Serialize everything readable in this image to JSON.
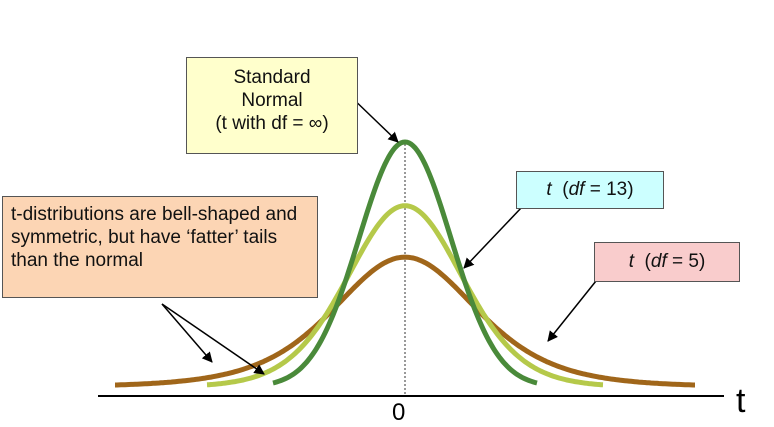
{
  "labels": {
    "standard_normal": [
      "Standard",
      "Normal",
      "(t with df = ∞)"
    ],
    "description": "t-distributions are bell-shaped and symmetric, but have ‘fatter’ tails than the normal",
    "t13": {
      "t": "t",
      "open": "(",
      "df": "df",
      "eq": " = 13)"
    },
    "t5": {
      "t": "t",
      "open": "(",
      "df": "df",
      "eq": " = 5)"
    }
  },
  "axis": {
    "zero_label": "0",
    "variable_label": "t"
  },
  "colors": {
    "normal_curve": "#4a8a3a",
    "t13_curve": "#b5c94a",
    "t5_curve": "#a0661a",
    "std_box": "#ffffcc",
    "desc_box": "#fcd5b4",
    "t13_box": "#ccffff",
    "t5_box": "#f9cccc"
  },
  "chart_data": {
    "type": "line",
    "series": [
      {
        "df": "infinity",
        "peak": 1.0
      },
      {
        "df": 13,
        "peak": 0.74
      },
      {
        "df": 5,
        "peak": 0.53
      }
    ]
  }
}
